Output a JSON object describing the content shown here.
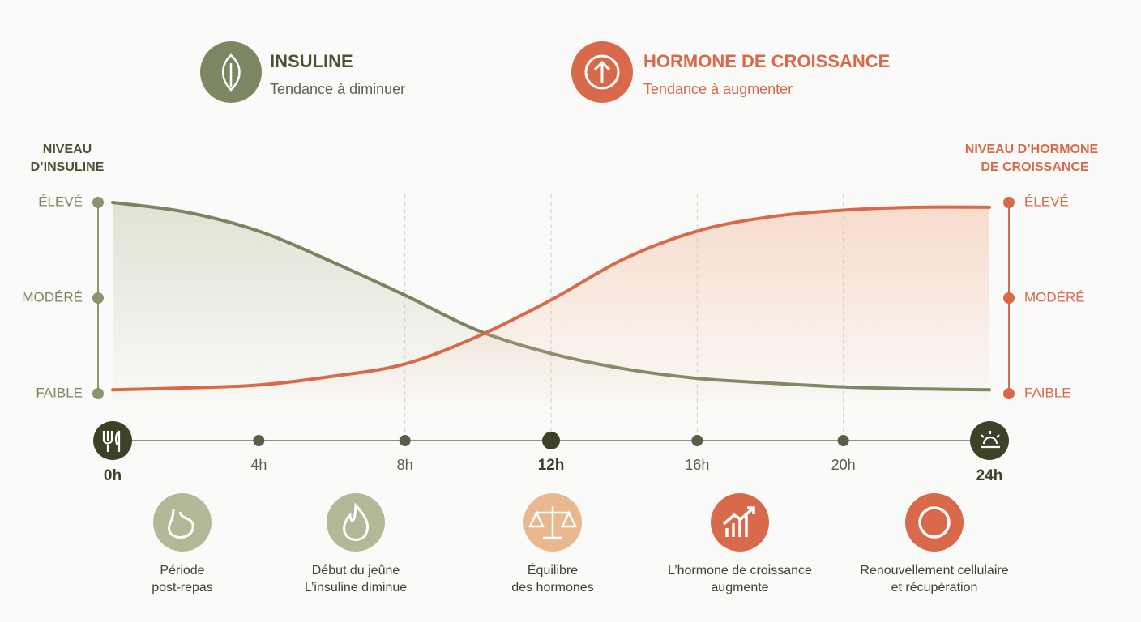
{
  "chart_data": {
    "type": "line",
    "y_label": [
      "NIVEAU",
      "D’INSULINE"
    ],
    "y2_label": [
      "NIVEAU D’HORMONE",
      "DE CROISSANCE"
    ],
    "x": [
      0,
      2,
      4,
      6,
      8,
      10,
      12,
      14,
      16,
      18,
      20,
      22,
      24
    ],
    "xlim": [
      0,
      24
    ],
    "xticks": [
      {
        "value": 0,
        "label": "0h"
      },
      {
        "value": 4,
        "label": "4h"
      },
      {
        "value": 8,
        "label": "8h"
      },
      {
        "value": 12,
        "label": "12h"
      },
      {
        "value": 16,
        "label": "16h"
      },
      {
        "value": 20,
        "label": "20h"
      },
      {
        "value": 24,
        "label": "24h"
      }
    ],
    "ylim": [
      0,
      2
    ],
    "yticks": [
      {
        "value": 0,
        "label": "FAIBLE"
      },
      {
        "value": 1,
        "label": "MODÉRÉ"
      },
      {
        "value": 2,
        "label": "ÉLEVÉ"
      }
    ],
    "y2lim": [
      0,
      2
    ],
    "y2ticks": [
      {
        "value": 0,
        "label": "FAIBLE"
      },
      {
        "value": 1,
        "label": "MODÉRÉ"
      },
      {
        "value": 2,
        "label": "ÉLEVÉ"
      }
    ],
    "series": [
      {
        "name": "INSULINE",
        "trend": "Tendance à diminuer",
        "color": "#7b8460",
        "values": [
          2.0,
          1.9,
          1.7,
          1.38,
          1.03,
          0.66,
          0.42,
          0.26,
          0.16,
          0.11,
          0.07,
          0.05,
          0.04
        ]
      },
      {
        "name": "HORMONE DE CROISSANCE",
        "trend": "Tendance à augmenter",
        "color": "#d8694a",
        "axis": "y2",
        "values": [
          0.04,
          0.06,
          0.09,
          0.18,
          0.31,
          0.6,
          0.98,
          1.41,
          1.7,
          1.85,
          1.92,
          1.95,
          1.95
        ]
      }
    ],
    "phases": [
      [
        "Période",
        "post-repas"
      ],
      [
        "Début du jeûne",
        "L’insuline diminue"
      ],
      [
        "Équilibre",
        "des hormones"
      ],
      [
        "L’hormone de croissance",
        "augmente"
      ],
      [
        "Renouvellement cellulaire",
        "et récupération"
      ]
    ]
  }
}
